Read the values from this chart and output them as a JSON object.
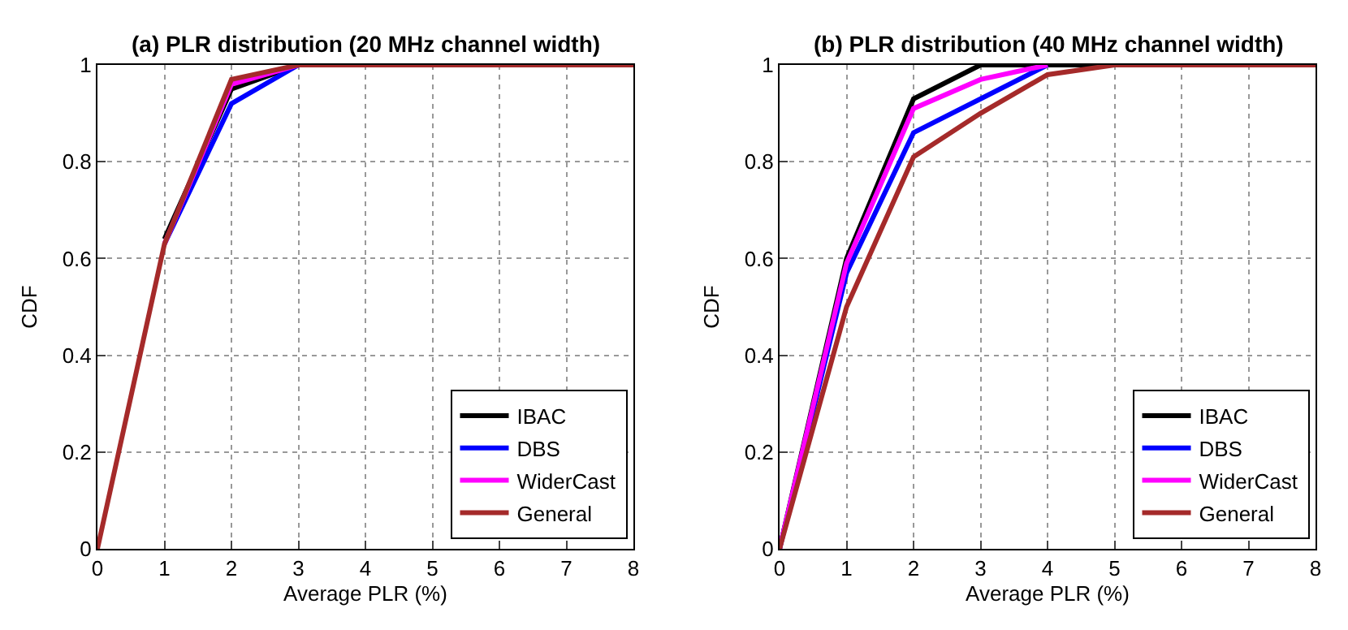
{
  "chart_data": [
    {
      "type": "line",
      "title": "(a) PLR distribution (20 MHz channel width)",
      "xlabel": "Average PLR (%)",
      "ylabel": "CDF",
      "x": [
        0,
        1,
        2,
        3,
        4,
        5,
        6,
        7,
        8
      ],
      "xlim": [
        0,
        8
      ],
      "xticks": [
        0,
        1,
        2,
        3,
        4,
        5,
        6,
        7,
        8
      ],
      "ylim": [
        0,
        1
      ],
      "yticks": [
        0,
        0.2,
        0.4,
        0.6,
        0.8,
        1
      ],
      "grid": true,
      "legend": "bottom right",
      "marker": "none",
      "line_style": "solid",
      "series": [
        {
          "name": "IBAC",
          "color": "#000000",
          "values": [
            null,
            0.64,
            0.95,
            1,
            null,
            null,
            null,
            null,
            null
          ]
        },
        {
          "name": "DBS",
          "color": "#0000ff",
          "values": [
            null,
            0.63,
            0.92,
            1,
            null,
            null,
            null,
            null,
            null
          ]
        },
        {
          "name": "WiderCast",
          "color": "#ff00ff",
          "values": [
            null,
            0.63,
            0.96,
            1,
            null,
            null,
            null,
            null,
            null
          ]
        },
        {
          "name": "General",
          "color": "#a52a2a",
          "values": [
            0,
            0.63,
            0.97,
            1,
            1,
            1,
            1,
            1,
            1
          ]
        }
      ]
    },
    {
      "type": "line",
      "title": "(b) PLR distribution (40 MHz channel width)",
      "xlabel": "Average PLR (%)",
      "ylabel": "CDF",
      "x": [
        0,
        1,
        2,
        3,
        4,
        5,
        6,
        7,
        8
      ],
      "xlim": [
        0,
        8
      ],
      "xticks": [
        0,
        1,
        2,
        3,
        4,
        5,
        6,
        7,
        8
      ],
      "ylim": [
        0,
        1
      ],
      "yticks": [
        0,
        0.2,
        0.4,
        0.6,
        0.8,
        1
      ],
      "grid": true,
      "legend": "bottom right",
      "marker": "none",
      "line_style": "solid",
      "series": [
        {
          "name": "IBAC",
          "color": "#000000",
          "values": [
            0,
            0.6,
            0.93,
            1,
            1,
            1,
            null,
            null,
            null
          ]
        },
        {
          "name": "DBS",
          "color": "#0000ff",
          "values": [
            0,
            0.57,
            0.86,
            0.93,
            1,
            null,
            null,
            null,
            null
          ]
        },
        {
          "name": "WiderCast",
          "color": "#ff00ff",
          "values": [
            0,
            0.59,
            0.91,
            0.97,
            1,
            null,
            null,
            null,
            null
          ]
        },
        {
          "name": "General",
          "color": "#a52a2a",
          "values": [
            0,
            0.5,
            0.81,
            0.9,
            0.98,
            1,
            1,
            1,
            1
          ]
        }
      ]
    }
  ]
}
